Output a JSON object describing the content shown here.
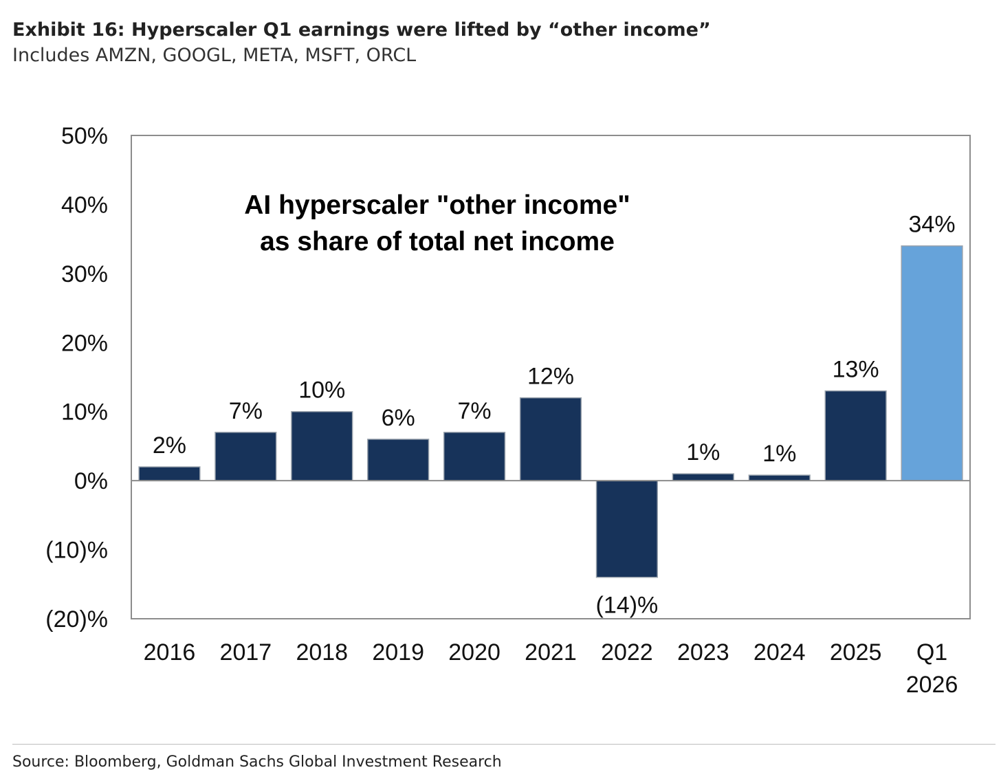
{
  "header": {
    "title": "Exhibit 16: Hyperscaler Q1 earnings were lifted by “other income”",
    "subtitle": "Includes AMZN, GOOGL, META, MSFT, ORCL"
  },
  "footer": {
    "source": "Source: Bloomberg, Goldman Sachs Global Investment Research"
  },
  "chart_data": {
    "type": "bar",
    "annotation": [
      "AI hyperscaler \"other income\"",
      "as share of total net income"
    ],
    "categories": [
      [
        "2016"
      ],
      [
        "2017"
      ],
      [
        "2018"
      ],
      [
        "2019"
      ],
      [
        "2020"
      ],
      [
        "2021"
      ],
      [
        "2022"
      ],
      [
        "2023"
      ],
      [
        "2024"
      ],
      [
        "2025"
      ],
      [
        "Q1",
        "2026"
      ]
    ],
    "values": [
      2,
      7,
      10,
      6,
      7,
      12,
      -14,
      1,
      0.8,
      13,
      34
    ],
    "data_labels": [
      "2%",
      "7%",
      "10%",
      "6%",
      "7%",
      "12%",
      "(14)%",
      "1%",
      "1%",
      "13%",
      "34%"
    ],
    "yticks": [
      50,
      40,
      30,
      20,
      10,
      0,
      -10,
      -20
    ],
    "ytick_labels": [
      "50%",
      "40%",
      "30%",
      "20%",
      "10%",
      "0%",
      "(10)%",
      "(20)%"
    ],
    "ylim": [
      -20,
      50
    ],
    "grid": false,
    "colors": {
      "bar": "#17335a",
      "highlight": "#66a3da",
      "axis": "#8c8c8c"
    },
    "highlight_index": 10
  }
}
